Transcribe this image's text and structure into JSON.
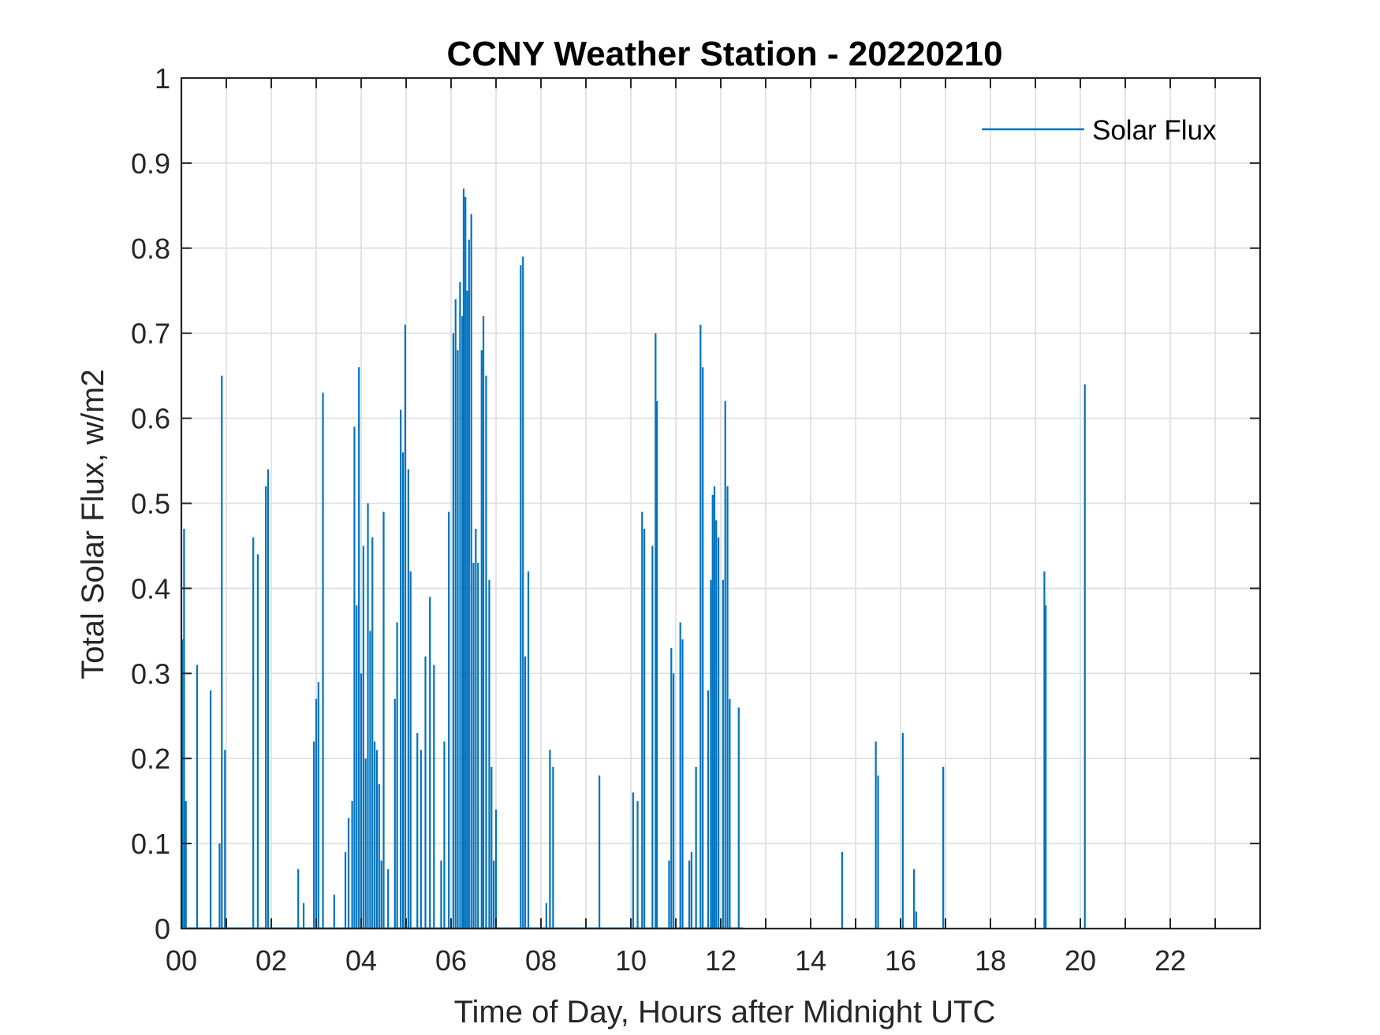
{
  "chart_data": {
    "type": "line",
    "title": "CCNY Weather Station - 20220210",
    "xlabel": "Time of Day, Hours after Midnight UTC",
    "ylabel": "Total Solar Flux, w/m2",
    "xlim": [
      0,
      24
    ],
    "ylim": [
      0,
      1
    ],
    "grid": true,
    "legend_position": "top-right",
    "x_tick_values": [
      0,
      2,
      4,
      6,
      8,
      10,
      12,
      14,
      16,
      18,
      20,
      22
    ],
    "x_tick_labels": [
      "00",
      "02",
      "04",
      "06",
      "08",
      "10",
      "12",
      "14",
      "16",
      "18",
      "20",
      "22"
    ],
    "y_tick_values": [
      0,
      0.1,
      0.2,
      0.3,
      0.4,
      0.5,
      0.6,
      0.7,
      0.8,
      0.9,
      1
    ],
    "y_tick_labels": [
      "0",
      "0.1",
      "0.2",
      "0.3",
      "0.4",
      "0.5",
      "0.6",
      "0.7",
      "0.8",
      "0.9",
      "1"
    ],
    "series": [
      {
        "name": "Solar Flux",
        "color": "#0072BD",
        "spikes": [
          [
            0.02,
            0.34
          ],
          [
            0.06,
            0.47
          ],
          [
            0.1,
            0.15
          ],
          [
            0.35,
            0.31
          ],
          [
            0.65,
            0.28
          ],
          [
            0.85,
            0.1
          ],
          [
            0.9,
            0.65
          ],
          [
            0.97,
            0.21
          ],
          [
            1.6,
            0.46
          ],
          [
            1.7,
            0.44
          ],
          [
            1.88,
            0.52
          ],
          [
            1.93,
            0.54
          ],
          [
            2.6,
            0.07
          ],
          [
            2.72,
            0.03
          ],
          [
            3.4,
            0.04
          ],
          [
            2.95,
            0.22
          ],
          [
            3.0,
            0.27
          ],
          [
            3.05,
            0.29
          ],
          [
            3.15,
            0.63
          ],
          [
            3.65,
            0.09
          ],
          [
            3.72,
            0.13
          ],
          [
            3.8,
            0.15
          ],
          [
            3.85,
            0.59
          ],
          [
            3.9,
            0.38
          ],
          [
            3.95,
            0.66
          ],
          [
            4.0,
            0.3
          ],
          [
            4.05,
            0.45
          ],
          [
            4.1,
            0.2
          ],
          [
            4.15,
            0.5
          ],
          [
            4.2,
            0.35
          ],
          [
            4.25,
            0.46
          ],
          [
            4.3,
            0.22
          ],
          [
            4.35,
            0.21
          ],
          [
            4.4,
            0.17
          ],
          [
            4.45,
            0.08
          ],
          [
            4.5,
            0.49
          ],
          [
            4.6,
            0.07
          ],
          [
            4.75,
            0.27
          ],
          [
            4.8,
            0.36
          ],
          [
            4.88,
            0.61
          ],
          [
            4.93,
            0.56
          ],
          [
            4.98,
            0.71
          ],
          [
            5.05,
            0.54
          ],
          [
            5.1,
            0.42
          ],
          [
            5.25,
            0.23
          ],
          [
            5.33,
            0.21
          ],
          [
            5.43,
            0.32
          ],
          [
            5.53,
            0.39
          ],
          [
            5.62,
            0.31
          ],
          [
            5.78,
            0.08
          ],
          [
            5.85,
            0.22
          ],
          [
            5.95,
            0.49
          ],
          [
            6.05,
            0.7
          ],
          [
            6.1,
            0.74
          ],
          [
            6.15,
            0.68
          ],
          [
            6.2,
            0.76
          ],
          [
            6.25,
            0.72
          ],
          [
            6.28,
            0.87
          ],
          [
            6.32,
            0.86
          ],
          [
            6.36,
            0.75
          ],
          [
            6.4,
            0.81
          ],
          [
            6.45,
            0.84
          ],
          [
            6.5,
            0.43
          ],
          [
            6.55,
            0.47
          ],
          [
            6.6,
            0.43
          ],
          [
            6.68,
            0.68
          ],
          [
            6.72,
            0.72
          ],
          [
            6.78,
            0.65
          ],
          [
            6.85,
            0.41
          ],
          [
            6.9,
            0.19
          ],
          [
            6.95,
            0.08
          ],
          [
            7.0,
            0.14
          ],
          [
            7.55,
            0.78
          ],
          [
            7.6,
            0.79
          ],
          [
            7.72,
            0.42
          ],
          [
            7.65,
            0.32
          ],
          [
            8.12,
            0.03
          ],
          [
            8.2,
            0.21
          ],
          [
            8.27,
            0.19
          ],
          [
            9.3,
            0.18
          ],
          [
            10.05,
            0.16
          ],
          [
            10.15,
            0.15
          ],
          [
            10.25,
            0.49
          ],
          [
            10.3,
            0.47
          ],
          [
            10.48,
            0.45
          ],
          [
            10.55,
            0.7
          ],
          [
            10.58,
            0.62
          ],
          [
            10.85,
            0.08
          ],
          [
            10.9,
            0.33
          ],
          [
            10.95,
            0.3
          ],
          [
            11.1,
            0.36
          ],
          [
            11.15,
            0.34
          ],
          [
            11.3,
            0.08
          ],
          [
            11.35,
            0.09
          ],
          [
            11.45,
            0.19
          ],
          [
            11.55,
            0.71
          ],
          [
            11.6,
            0.66
          ],
          [
            11.72,
            0.28
          ],
          [
            11.78,
            0.41
          ],
          [
            11.82,
            0.51
          ],
          [
            11.86,
            0.52
          ],
          [
            11.9,
            0.48
          ],
          [
            11.95,
            0.46
          ],
          [
            12.05,
            0.41
          ],
          [
            12.1,
            0.62
          ],
          [
            12.15,
            0.52
          ],
          [
            12.2,
            0.27
          ],
          [
            12.4,
            0.26
          ],
          [
            14.7,
            0.09
          ],
          [
            15.45,
            0.22
          ],
          [
            15.5,
            0.18
          ],
          [
            16.05,
            0.23
          ],
          [
            16.3,
            0.07
          ],
          [
            16.35,
            0.02
          ],
          [
            16.95,
            0.19
          ],
          [
            19.2,
            0.42
          ],
          [
            19.23,
            0.38
          ],
          [
            20.1,
            0.64
          ]
        ]
      }
    ]
  }
}
